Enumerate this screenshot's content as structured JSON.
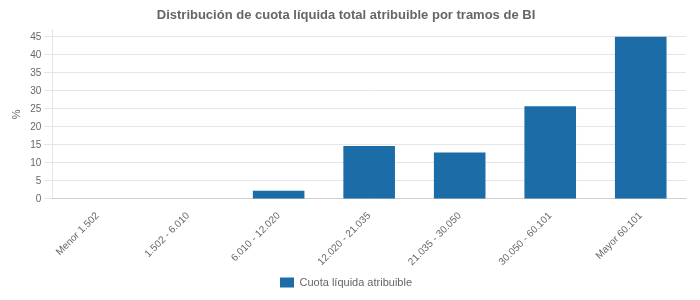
{
  "chart_data": {
    "type": "bar",
    "title": "Distribución de cuota líquida total atribuible por tramos de BI",
    "categories": [
      "Menor 1.502",
      "1.502 - 6.010",
      "6.010 - 12.020",
      "12.020 - 21.035",
      "21.035 - 30.050",
      "30.050 - 60.101",
      "Mayor 60.101"
    ],
    "series": [
      {
        "name": "Cuota líquida atribuible",
        "color": "#1c6ca8",
        "values": [
          0.0,
          0.0,
          2.3,
          14.7,
          12.9,
          25.7,
          45.0
        ]
      }
    ],
    "ylabel": "%",
    "ylim": [
      0,
      47
    ],
    "yticks": [
      0,
      5,
      10,
      15,
      20,
      25,
      30,
      35,
      40,
      45
    ],
    "grid": true,
    "legend": "bottom"
  }
}
